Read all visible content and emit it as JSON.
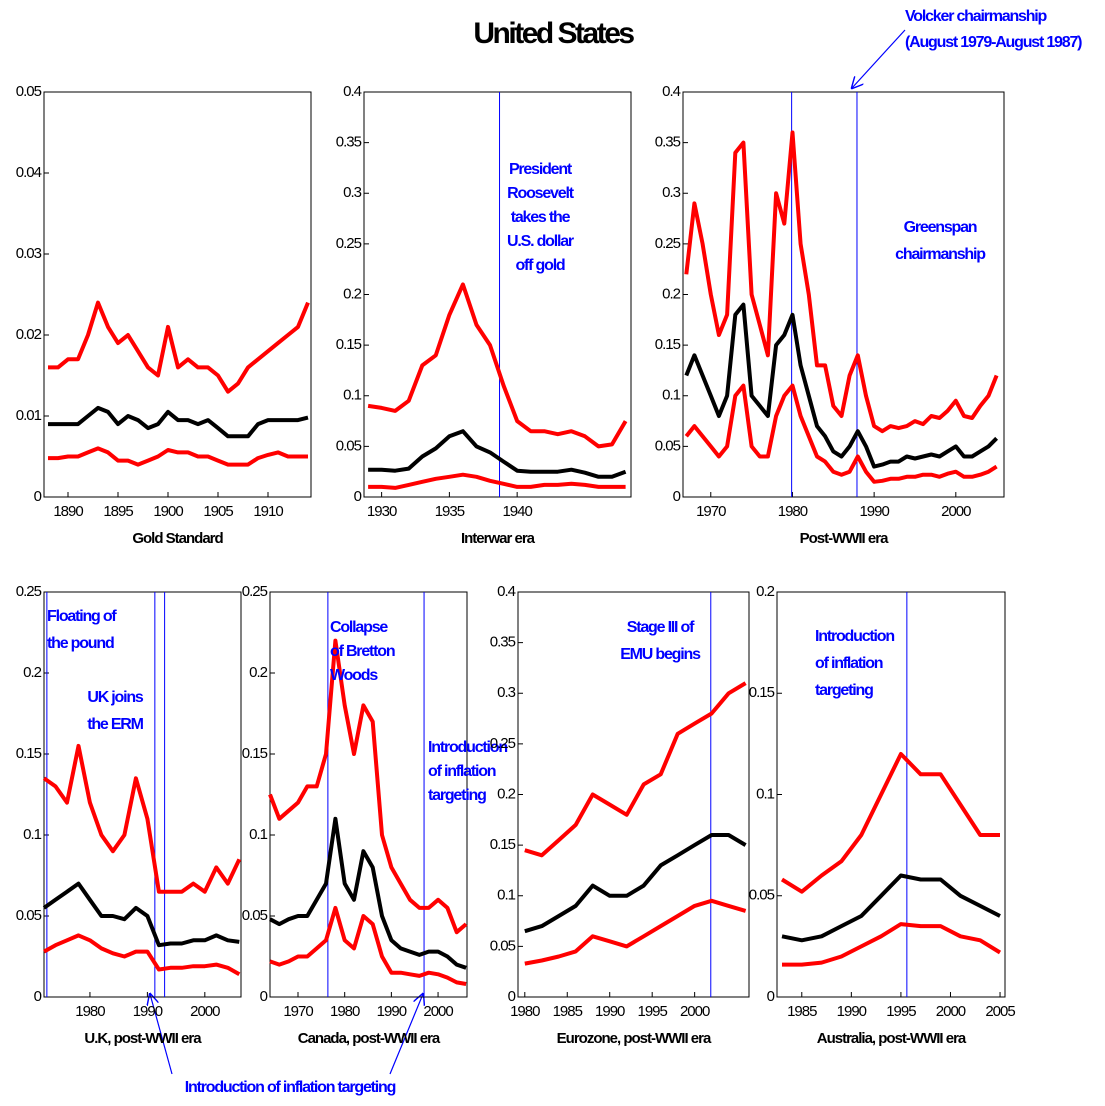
{
  "title": "United States",
  "annotation_color": "#0000ff",
  "annotations": [
    [
      "Volcker chairmanship",
      "(August 1979-August 1987)"
    ],
    [
      "Introduction of inflation targeting"
    ]
  ],
  "chart_data": [
    {
      "type": "line",
      "xlabel": "Gold Standard",
      "xlim": [
        1887.6,
        1914.3
      ],
      "xticks": [
        1890,
        1895,
        1900,
        1905,
        1910
      ],
      "ylim": [
        0,
        0.05
      ],
      "yticks": [
        0,
        0.01,
        0.02,
        0.03,
        0.04,
        0.05
      ],
      "x": [
        1888,
        1889,
        1890,
        1891,
        1892,
        1893,
        1894,
        1895,
        1896,
        1897,
        1898,
        1899,
        1900,
        1901,
        1902,
        1903,
        1904,
        1905,
        1906,
        1907,
        1908,
        1909,
        1910,
        1911,
        1912,
        1913,
        1914
      ],
      "series": [
        {
          "color": "#ff0000",
          "values": [
            0.016,
            0.016,
            0.017,
            0.017,
            0.02,
            0.024,
            0.021,
            0.019,
            0.02,
            0.018,
            0.016,
            0.015,
            0.021,
            0.016,
            0.017,
            0.016,
            0.016,
            0.015,
            0.013,
            0.014,
            0.016,
            0.017,
            0.018,
            0.019,
            0.02,
            0.021,
            0.024
          ]
        },
        {
          "color": "#000000",
          "values": [
            0.009,
            0.009,
            0.009,
            0.009,
            0.01,
            0.011,
            0.0105,
            0.009,
            0.01,
            0.0095,
            0.0085,
            0.009,
            0.0105,
            0.0095,
            0.0095,
            0.009,
            0.0095,
            0.0085,
            0.0075,
            0.0075,
            0.0075,
            0.009,
            0.0095,
            0.0095,
            0.0095,
            0.0095,
            0.0098
          ]
        },
        {
          "color": "#ff0000",
          "values": [
            0.0048,
            0.0048,
            0.005,
            0.005,
            0.0055,
            0.006,
            0.0055,
            0.0045,
            0.0045,
            0.004,
            0.0045,
            0.005,
            0.0058,
            0.0055,
            0.0055,
            0.005,
            0.005,
            0.0045,
            0.004,
            0.004,
            0.004,
            0.0048,
            0.0052,
            0.0055,
            0.005,
            0.005,
            0.005
          ]
        }
      ],
      "vlines": [],
      "annotations": []
    },
    {
      "type": "line",
      "xlabel": "Interwar era",
      "xlim": [
        1928.7,
        1948.4
      ],
      "xticks": [
        1930,
        1935,
        1940
      ],
      "ylim": [
        0,
        0.4
      ],
      "yticks": [
        0,
        0.05,
        0.1,
        0.15,
        0.2,
        0.25,
        0.3,
        0.35,
        0.4
      ],
      "x": [
        1929,
        1930,
        1931,
        1932,
        1933,
        1934,
        1935,
        1936,
        1937,
        1938,
        1939,
        1940,
        1941,
        1942,
        1943,
        1944,
        1945,
        1946,
        1947,
        1948
      ],
      "series": [
        {
          "color": "#ff0000",
          "values": [
            0.09,
            0.088,
            0.085,
            0.095,
            0.13,
            0.14,
            0.18,
            0.21,
            0.17,
            0.15,
            0.11,
            0.075,
            0.065,
            0.065,
            0.062,
            0.065,
            0.06,
            0.05,
            0.052,
            0.075
          ]
        },
        {
          "color": "#000000",
          "values": [
            0.027,
            0.027,
            0.026,
            0.028,
            0.04,
            0.048,
            0.06,
            0.065,
            0.05,
            0.044,
            0.035,
            0.026,
            0.025,
            0.025,
            0.025,
            0.027,
            0.024,
            0.02,
            0.02,
            0.025
          ]
        },
        {
          "color": "#ff0000",
          "values": [
            0.01,
            0.01,
            0.009,
            0.012,
            0.015,
            0.018,
            0.02,
            0.022,
            0.02,
            0.016,
            0.013,
            0.01,
            0.01,
            0.012,
            0.012,
            0.013,
            0.012,
            0.01,
            0.01,
            0.01
          ]
        }
      ],
      "vlines": [
        1938.7
      ],
      "annotations": [
        [
          "President",
          "Roosevelt",
          "takes the",
          "U.S. dollar",
          "off gold"
        ]
      ]
    },
    {
      "type": "line",
      "xlabel": "Post-WWII era",
      "xlim": [
        1966.6,
        2005.9
      ],
      "xticks": [
        1970,
        1980,
        1990,
        2000
      ],
      "ylim": [
        0,
        0.4
      ],
      "yticks": [
        0,
        0.05,
        0.1,
        0.15,
        0.2,
        0.25,
        0.3,
        0.35,
        0.4
      ],
      "x": [
        1967,
        1968,
        1969,
        1970,
        1971,
        1972,
        1973,
        1974,
        1975,
        1976,
        1977,
        1978,
        1979,
        1980,
        1981,
        1982,
        1983,
        1984,
        1985,
        1986,
        1987,
        1988,
        1989,
        1990,
        1991,
        1992,
        1993,
        1994,
        1995,
        1996,
        1997,
        1998,
        1999,
        2000,
        2001,
        2002,
        2003,
        2004,
        2005
      ],
      "series": [
        {
          "color": "#ff0000",
          "values": [
            0.22,
            0.29,
            0.25,
            0.2,
            0.16,
            0.18,
            0.34,
            0.35,
            0.2,
            0.17,
            0.14,
            0.3,
            0.27,
            0.36,
            0.25,
            0.2,
            0.13,
            0.13,
            0.09,
            0.08,
            0.12,
            0.14,
            0.1,
            0.07,
            0.065,
            0.07,
            0.068,
            0.07,
            0.075,
            0.072,
            0.08,
            0.078,
            0.085,
            0.095,
            0.08,
            0.078,
            0.09,
            0.1,
            0.12
          ]
        },
        {
          "color": "#000000",
          "values": [
            0.12,
            0.14,
            0.12,
            0.1,
            0.08,
            0.1,
            0.18,
            0.19,
            0.1,
            0.09,
            0.08,
            0.15,
            0.16,
            0.18,
            0.13,
            0.1,
            0.07,
            0.06,
            0.045,
            0.04,
            0.05,
            0.065,
            0.05,
            0.03,
            0.032,
            0.035,
            0.035,
            0.04,
            0.038,
            0.04,
            0.042,
            0.04,
            0.045,
            0.05,
            0.04,
            0.04,
            0.045,
            0.05,
            0.058
          ]
        },
        {
          "color": "#ff0000",
          "values": [
            0.06,
            0.07,
            0.06,
            0.05,
            0.04,
            0.05,
            0.1,
            0.11,
            0.05,
            0.04,
            0.04,
            0.08,
            0.1,
            0.11,
            0.08,
            0.06,
            0.04,
            0.035,
            0.025,
            0.022,
            0.025,
            0.04,
            0.025,
            0.015,
            0.016,
            0.018,
            0.018,
            0.02,
            0.02,
            0.022,
            0.022,
            0.02,
            0.023,
            0.025,
            0.02,
            0.02,
            0.022,
            0.025,
            0.03
          ]
        }
      ],
      "vlines": [
        1979.9,
        1987.9
      ],
      "annotations": [
        [
          "Greenspan",
          "chairmanship"
        ]
      ]
    },
    {
      "type": "line",
      "xlabel": "U.K, post-WWII era",
      "xlim": [
        1972,
        2006.3
      ],
      "xticks": [
        1980,
        1990,
        2000
      ],
      "ylim": [
        0,
        0.25
      ],
      "yticks": [
        0,
        0.05,
        0.1,
        0.15,
        0.2,
        0.25
      ],
      "x": [
        1972,
        1974,
        1976,
        1978,
        1980,
        1982,
        1984,
        1986,
        1988,
        1990,
        1992,
        1994,
        1996,
        1998,
        2000,
        2002,
        2004,
        2006
      ],
      "series": [
        {
          "color": "#ff0000",
          "values": [
            0.135,
            0.13,
            0.12,
            0.155,
            0.12,
            0.1,
            0.09,
            0.1,
            0.135,
            0.11,
            0.065,
            0.065,
            0.065,
            0.07,
            0.065,
            0.08,
            0.07,
            0.085
          ]
        },
        {
          "color": "#000000",
          "values": [
            0.055,
            0.06,
            0.065,
            0.07,
            0.06,
            0.05,
            0.05,
            0.048,
            0.055,
            0.05,
            0.032,
            0.033,
            0.033,
            0.035,
            0.035,
            0.038,
            0.035,
            0.034
          ]
        },
        {
          "color": "#ff0000",
          "values": [
            0.028,
            0.032,
            0.035,
            0.038,
            0.035,
            0.03,
            0.027,
            0.025,
            0.028,
            0.028,
            0.017,
            0.018,
            0.018,
            0.019,
            0.019,
            0.02,
            0.018,
            0.014
          ]
        }
      ],
      "vlines": [
        1972.5,
        1991.3,
        1993
      ],
      "annotations": [
        [
          "Floating of",
          "the pound"
        ],
        [
          "UK joins",
          "the ERM"
        ]
      ]
    },
    {
      "type": "line",
      "xlabel": "Canada, post-WWII era",
      "xlim": [
        1964,
        2006.2
      ],
      "xticks": [
        1970,
        1980,
        1990,
        2000
      ],
      "ylim": [
        0,
        0.25
      ],
      "yticks": [
        0,
        0.05,
        0.1,
        0.15,
        0.2,
        0.25
      ],
      "x": [
        1964,
        1966,
        1968,
        1970,
        1972,
        1974,
        1976,
        1978,
        1980,
        1982,
        1984,
        1986,
        1988,
        1990,
        1992,
        1994,
        1996,
        1998,
        2000,
        2002,
        2004,
        2006
      ],
      "series": [
        {
          "color": "#ff0000",
          "values": [
            0.125,
            0.11,
            0.115,
            0.12,
            0.13,
            0.13,
            0.15,
            0.22,
            0.18,
            0.15,
            0.18,
            0.17,
            0.1,
            0.08,
            0.07,
            0.06,
            0.055,
            0.055,
            0.06,
            0.055,
            0.04,
            0.045
          ]
        },
        {
          "color": "#000000",
          "values": [
            0.048,
            0.045,
            0.048,
            0.05,
            0.05,
            0.06,
            0.07,
            0.11,
            0.07,
            0.06,
            0.09,
            0.08,
            0.05,
            0.035,
            0.03,
            0.028,
            0.026,
            0.028,
            0.028,
            0.025,
            0.02,
            0.018
          ]
        },
        {
          "color": "#ff0000",
          "values": [
            0.022,
            0.02,
            0.022,
            0.025,
            0.025,
            0.03,
            0.035,
            0.055,
            0.035,
            0.03,
            0.05,
            0.045,
            0.025,
            0.015,
            0.015,
            0.014,
            0.013,
            0.015,
            0.014,
            0.012,
            0.009,
            0.008
          ]
        }
      ],
      "vlines": [
        1976.4,
        1997
      ],
      "annotations": [
        [
          "Collapse",
          "of Bretton",
          "Woods"
        ],
        [
          "Introduction",
          "of inflation",
          "targeting"
        ]
      ]
    },
    {
      "type": "line",
      "xlabel": "Eurozone, post-WWII era",
      "xlim": [
        1979.2,
        2006.4
      ],
      "xticks": [
        1980,
        1985,
        1990,
        1995,
        2000
      ],
      "ylim": [
        0,
        0.4
      ],
      "yticks": [
        0,
        0.05,
        0.1,
        0.15,
        0.2,
        0.25,
        0.3,
        0.35,
        0.4
      ],
      "x": [
        1980,
        1982,
        1984,
        1986,
        1988,
        1990,
        1992,
        1994,
        1996,
        1998,
        2000,
        2002,
        2004,
        2006
      ],
      "series": [
        {
          "color": "#ff0000",
          "values": [
            0.145,
            0.14,
            0.155,
            0.17,
            0.2,
            0.19,
            0.18,
            0.21,
            0.22,
            0.26,
            0.27,
            0.28,
            0.3,
            0.31
          ]
        },
        {
          "color": "#000000",
          "values": [
            0.065,
            0.07,
            0.08,
            0.09,
            0.11,
            0.1,
            0.1,
            0.11,
            0.13,
            0.14,
            0.15,
            0.16,
            0.16,
            0.15
          ]
        },
        {
          "color": "#ff0000",
          "values": [
            0.033,
            0.036,
            0.04,
            0.045,
            0.06,
            0.055,
            0.05,
            0.06,
            0.07,
            0.08,
            0.09,
            0.095,
            0.09,
            0.085
          ]
        }
      ],
      "vlines": [
        2001.9
      ],
      "annotations": [
        [
          "Stage III of",
          "EMU begins"
        ]
      ]
    },
    {
      "type": "line",
      "xlabel": "Australia, post-WWII era",
      "xlim": [
        1982.5,
        2005.5
      ],
      "xticks": [
        1985,
        1990,
        1995,
        2000,
        2005
      ],
      "ylim": [
        0,
        0.2
      ],
      "yticks": [
        0,
        0.05,
        0.1,
        0.15,
        0.2
      ],
      "x": [
        1983,
        1985,
        1987,
        1989,
        1991,
        1993,
        1995,
        1997,
        1999,
        2001,
        2003,
        2005
      ],
      "series": [
        {
          "color": "#ff0000",
          "values": [
            0.058,
            0.052,
            0.06,
            0.067,
            0.08,
            0.1,
            0.12,
            0.11,
            0.11,
            0.095,
            0.08,
            0.08
          ]
        },
        {
          "color": "#000000",
          "values": [
            0.03,
            0.028,
            0.03,
            0.035,
            0.04,
            0.05,
            0.06,
            0.058,
            0.058,
            0.05,
            0.045,
            0.04
          ]
        },
        {
          "color": "#ff0000",
          "values": [
            0.016,
            0.016,
            0.017,
            0.02,
            0.025,
            0.03,
            0.036,
            0.035,
            0.035,
            0.03,
            0.028,
            0.022
          ]
        }
      ],
      "vlines": [
        1995.6
      ],
      "annotations": [
        [
          "Introduction",
          "of inflation",
          "targeting"
        ]
      ]
    }
  ]
}
